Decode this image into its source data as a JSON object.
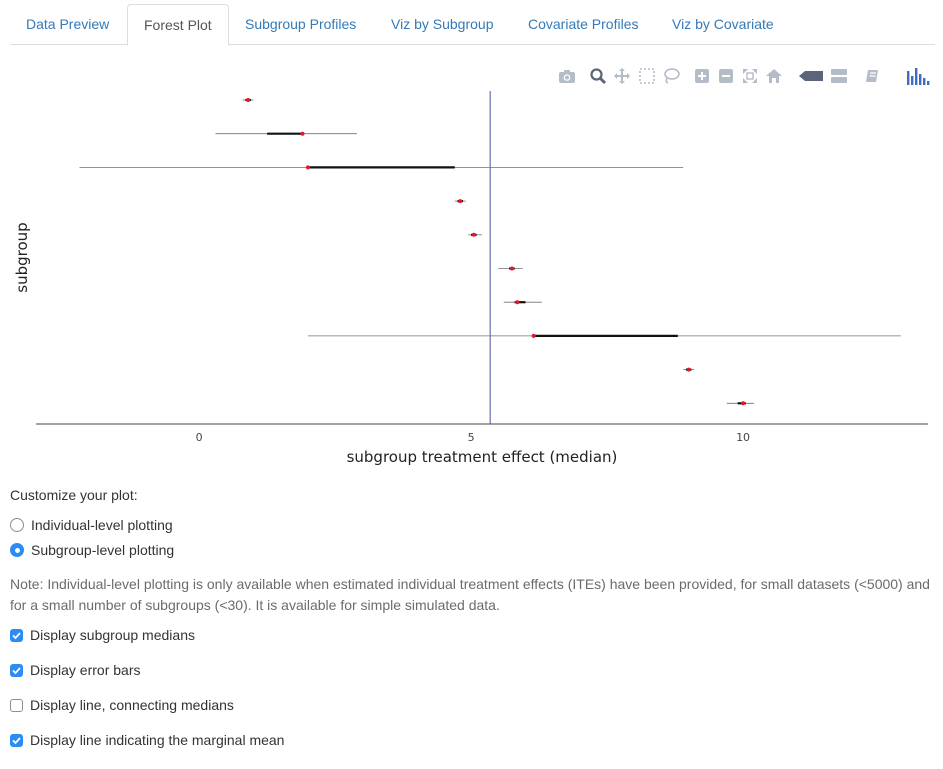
{
  "tabs": [
    {
      "label": "Data Preview",
      "active": false
    },
    {
      "label": "Forest Plot",
      "active": true
    },
    {
      "label": "Subgroup Profiles",
      "active": false
    },
    {
      "label": "Viz by Subgroup",
      "active": false
    },
    {
      "label": "Covariate Profiles",
      "active": false
    },
    {
      "label": "Viz by Covariate",
      "active": false
    }
  ],
  "modebar": {
    "icons": [
      "camera-icon",
      "zoom-icon",
      "pan-icon",
      "box-select-icon",
      "lasso-icon",
      "zoom-in-icon",
      "zoom-out-icon",
      "autoscale-icon",
      "reset-axes-icon",
      "spike-lines-icon",
      "compare-hover-icon",
      "show-closest-icon",
      "plotly-logo-icon"
    ]
  },
  "chart_data": {
    "type": "scatter",
    "xlabel": "subgroup treatment effect (median)",
    "ylabel": "subgroup",
    "xlim": [
      -3.0,
      13.4
    ],
    "x_ticks": [
      "0",
      "5",
      "10"
    ],
    "x_tick_values": [
      0,
      5,
      10
    ],
    "marginal_mean": 5.35,
    "show_y_tick_labels": false,
    "colors": {
      "median": "#e8132c",
      "outer_line": "#707070",
      "inner_line": "#111111",
      "mean_line": "#4a54a2"
    },
    "subgroups": [
      {
        "median": 0.9,
        "inner": [
          0.85,
          0.95
        ],
        "outer": [
          0.8,
          1.0
        ]
      },
      {
        "median": 1.9,
        "inner": [
          1.25,
          1.9
        ],
        "outer": [
          0.3,
          2.9
        ]
      },
      {
        "median": 2.0,
        "inner": [
          2.0,
          4.7
        ],
        "outer": [
          -2.2,
          8.9
        ]
      },
      {
        "median": 4.8,
        "inner": [
          4.75,
          4.85
        ],
        "outer": [
          4.7,
          4.9
        ]
      },
      {
        "median": 5.05,
        "inner": [
          5.0,
          5.1
        ],
        "outer": [
          4.95,
          5.2
        ]
      },
      {
        "median": 5.75,
        "inner": [
          5.7,
          5.8
        ],
        "outer": [
          5.5,
          5.95
        ]
      },
      {
        "median": 5.85,
        "inner": [
          5.8,
          6.0
        ],
        "outer": [
          5.6,
          6.3
        ]
      },
      {
        "median": 6.15,
        "inner": [
          6.15,
          8.8
        ],
        "outer": [
          2.0,
          12.9
        ]
      },
      {
        "median": 9.0,
        "inner": [
          8.95,
          9.05
        ],
        "outer": [
          8.9,
          9.1
        ]
      },
      {
        "median": 10.0,
        "inner": [
          9.9,
          10.05
        ],
        "outer": [
          9.7,
          10.2
        ]
      }
    ]
  },
  "controls": {
    "customize_label": "Customize your plot:",
    "radios": [
      {
        "label": "Individual-level plotting",
        "checked": false
      },
      {
        "label": "Subgroup-level plotting",
        "checked": true
      }
    ],
    "note": "Note: Individual-level plotting is only available when estimated individual treatment effects (ITEs) have been provided, for small datasets (<5000) and for a small number of subgroups (<30). It is available for simple simulated data.",
    "checkboxes": [
      {
        "label": "Display subgroup medians",
        "checked": true
      },
      {
        "label": "Display error bars",
        "checked": true
      },
      {
        "label": "Display line, connecting medians",
        "checked": false
      },
      {
        "label": "Display line indicating the marginal mean",
        "checked": true
      }
    ]
  }
}
